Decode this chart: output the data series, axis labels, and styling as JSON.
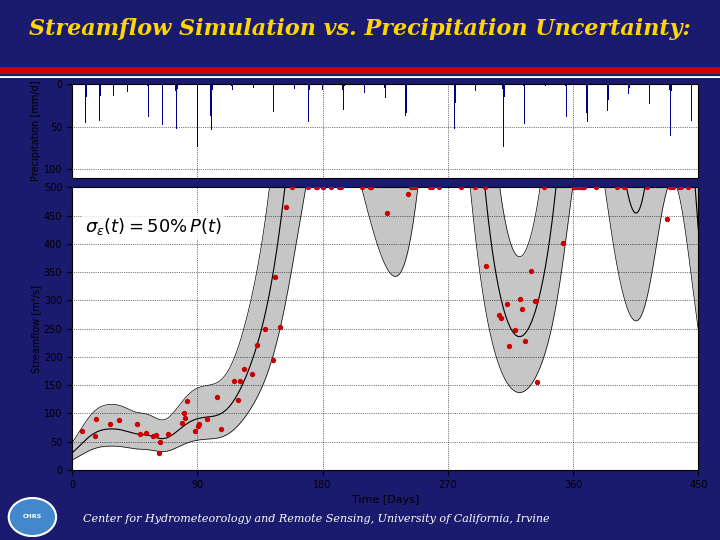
{
  "title": "Streamflow Simulation vs. Precipitation Uncertainty:",
  "title_color": "#FFD700",
  "title_bg_color": "#1a1a6e",
  "footer_text": "Center for Hydrometeorology and Remote Sensing, University of California, Irvine",
  "precip_ylabel": "Precipitation [mm/d]",
  "streamflow_ylabel": "Streamflow [m³/s]",
  "xlabel": "Time [Days]",
  "xlim": [
    0,
    450
  ],
  "precip_ylim": [
    110,
    0
  ],
  "streamflow_ylim": [
    0,
    500
  ],
  "streamflow_yticks": [
    0,
    50,
    100,
    150,
    200,
    250,
    300,
    350,
    400,
    450,
    500
  ],
  "precip_yticks": [
    0,
    50,
    100
  ],
  "xticks": [
    0,
    90,
    180,
    270,
    360,
    450
  ],
  "band_color": "#c0c0c0",
  "sim_line_color": "#000000",
  "obs_dot_color": "#cc0000",
  "precip_bar_color": "#00008B"
}
